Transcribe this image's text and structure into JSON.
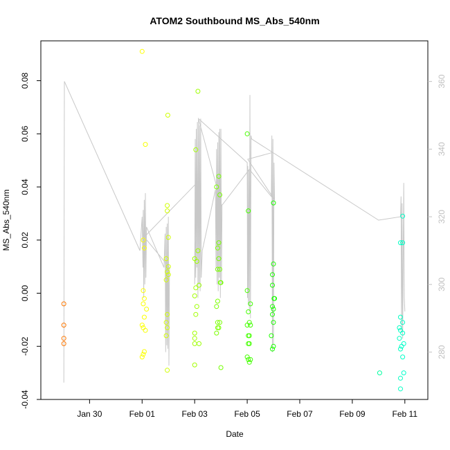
{
  "chart_data": {
    "type": "scatter",
    "title": "ATOM2 Southbound MS_Abs_540nm",
    "xlabel": "Date",
    "ylabel": "MS_Abs_540nm",
    "xlim": [
      "2017-01-28 03:30",
      "2017-02-11 21:00"
    ],
    "ylim": [
      -0.04,
      0.095
    ],
    "y2lim": [
      266,
      372
    ],
    "grid": false,
    "legend": "none",
    "x_ticks": [
      "Jan 30",
      "Feb 01",
      "Feb 03",
      "Feb 05",
      "Feb 07",
      "Feb 09",
      "Feb 11"
    ],
    "x_tick_dates": [
      "2017-01-30",
      "2017-02-01",
      "2017-02-03",
      "2017-02-05",
      "2017-02-07",
      "2017-02-09",
      "2017-02-11"
    ],
    "y_ticks": [
      -0.04,
      -0.02,
      0.0,
      0.02,
      0.04,
      0.06,
      0.08
    ],
    "y_tick_labels": [
      "-0.04",
      "-0.02",
      "0.00",
      "0.02",
      "0.04",
      "0.06",
      "0.08"
    ],
    "y2_ticks": [
      280,
      300,
      320,
      340,
      360
    ],
    "colors": {
      "points_early": "#ff8c00",
      "points_mid": "#ffff00",
      "points_late": "#00ffff",
      "overlay_line": "#c8c8c8",
      "right_axis": "#c0c0c0"
    },
    "series": [
      {
        "axis": "left",
        "style": "points",
        "points": [
          {
            "x": "2017-01-29 00:30",
            "y": -0.004
          },
          {
            "x": "2017-01-29 00:30",
            "y": -0.012
          },
          {
            "x": "2017-01-29 00:30",
            "y": -0.017
          },
          {
            "x": "2017-01-29 00:30",
            "y": -0.019
          },
          {
            "x": "2017-02-01 00:00",
            "y": 0.091
          },
          {
            "x": "2017-02-01 03:00",
            "y": 0.056
          },
          {
            "x": "2017-02-01 01:00",
            "y": 0.02
          },
          {
            "x": "2017-02-01 02:00",
            "y": 0.017
          },
          {
            "x": "2017-02-01 01:00",
            "y": 0.001
          },
          {
            "x": "2017-02-01 02:00",
            "y": -0.002
          },
          {
            "x": "2017-02-01 01:00",
            "y": -0.004
          },
          {
            "x": "2017-02-01 04:00",
            "y": -0.006
          },
          {
            "x": "2017-02-01 02:00",
            "y": -0.009
          },
          {
            "x": "2017-02-01 00:00",
            "y": -0.012
          },
          {
            "x": "2017-02-01 01:00",
            "y": -0.013
          },
          {
            "x": "2017-02-01 03:00",
            "y": -0.014
          },
          {
            "x": "2017-02-01 02:00",
            "y": -0.022
          },
          {
            "x": "2017-02-01 01:00",
            "y": -0.023
          },
          {
            "x": "2017-02-01 00:00",
            "y": -0.024
          },
          {
            "x": "2017-02-01 23:30",
            "y": 0.067
          },
          {
            "x": "2017-02-01 23:00",
            "y": 0.033
          },
          {
            "x": "2017-02-01 23:00",
            "y": 0.031
          },
          {
            "x": "2017-02-02 00:00",
            "y": 0.021
          },
          {
            "x": "2017-02-01 22:00",
            "y": 0.013
          },
          {
            "x": "2017-02-02 00:00",
            "y": 0.01
          },
          {
            "x": "2017-02-01 23:00",
            "y": 0.008
          },
          {
            "x": "2017-02-02 00:00",
            "y": 0.007
          },
          {
            "x": "2017-02-01 22:00",
            "y": 0.005
          },
          {
            "x": "2017-02-01 23:00",
            "y": -0.008
          },
          {
            "x": "2017-02-01 22:00",
            "y": -0.011
          },
          {
            "x": "2017-02-01 23:00",
            "y": -0.013
          },
          {
            "x": "2017-02-01 22:00",
            "y": -0.016
          },
          {
            "x": "2017-02-01 23:00",
            "y": -0.029
          },
          {
            "x": "2017-02-03 03:00",
            "y": 0.076
          },
          {
            "x": "2017-02-03 01:00",
            "y": 0.054
          },
          {
            "x": "2017-02-03 03:00",
            "y": 0.016
          },
          {
            "x": "2017-02-03 00:00",
            "y": 0.013
          },
          {
            "x": "2017-02-03 02:00",
            "y": 0.012
          },
          {
            "x": "2017-02-03 04:00",
            "y": 0.003
          },
          {
            "x": "2017-02-03 01:00",
            "y": 0.002
          },
          {
            "x": "2017-02-03 00:00",
            "y": -0.001
          },
          {
            "x": "2017-02-03 02:00",
            "y": -0.005
          },
          {
            "x": "2017-02-03 01:00",
            "y": -0.008
          },
          {
            "x": "2017-02-03 00:00",
            "y": -0.015
          },
          {
            "x": "2017-02-03 00:00",
            "y": -0.017
          },
          {
            "x": "2017-02-03 00:00",
            "y": -0.019
          },
          {
            "x": "2017-02-03 04:00",
            "y": -0.019
          },
          {
            "x": "2017-02-03 00:00",
            "y": -0.027
          },
          {
            "x": "2017-02-03 22:00",
            "y": 0.044
          },
          {
            "x": "2017-02-03 20:00",
            "y": 0.04
          },
          {
            "x": "2017-02-03 23:00",
            "y": 0.037
          },
          {
            "x": "2017-02-03 22:00",
            "y": 0.019
          },
          {
            "x": "2017-02-03 21:00",
            "y": 0.017
          },
          {
            "x": "2017-02-03 22:00",
            "y": 0.013
          },
          {
            "x": "2017-02-03 21:00",
            "y": 0.009
          },
          {
            "x": "2017-02-03 23:00",
            "y": 0.009
          },
          {
            "x": "2017-02-04 00:00",
            "y": 0.004
          },
          {
            "x": "2017-02-03 23:30",
            "y": 0.004
          },
          {
            "x": "2017-02-03 21:00",
            "y": -0.003
          },
          {
            "x": "2017-02-03 20:00",
            "y": -0.005
          },
          {
            "x": "2017-02-03 21:00",
            "y": -0.011
          },
          {
            "x": "2017-02-03 23:00",
            "y": -0.011
          },
          {
            "x": "2017-02-03 22:00",
            "y": -0.013
          },
          {
            "x": "2017-02-03 21:00",
            "y": -0.013
          },
          {
            "x": "2017-02-03 20:00",
            "y": -0.015
          },
          {
            "x": "2017-02-04 00:00",
            "y": -0.028
          },
          {
            "x": "2017-02-05 00:00",
            "y": 0.06
          },
          {
            "x": "2017-02-05 01:00",
            "y": 0.031
          },
          {
            "x": "2017-02-05 00:00",
            "y": 0.001
          },
          {
            "x": "2017-02-05 03:00",
            "y": -0.004
          },
          {
            "x": "2017-02-05 01:00",
            "y": -0.007
          },
          {
            "x": "2017-02-05 02:00",
            "y": -0.011
          },
          {
            "x": "2017-02-05 00:00",
            "y": -0.012
          },
          {
            "x": "2017-02-05 03:00",
            "y": -0.012
          },
          {
            "x": "2017-02-05 01:00",
            "y": -0.016
          },
          {
            "x": "2017-02-05 02:00",
            "y": -0.016
          },
          {
            "x": "2017-02-05 01:00",
            "y": -0.019
          },
          {
            "x": "2017-02-05 02:00",
            "y": -0.019
          },
          {
            "x": "2017-02-05 00:00",
            "y": -0.024
          },
          {
            "x": "2017-02-05 01:00",
            "y": -0.025
          },
          {
            "x": "2017-02-05 03:00",
            "y": -0.025
          },
          {
            "x": "2017-02-05 02:00",
            "y": -0.026
          },
          {
            "x": "2017-02-06 00:00",
            "y": 0.034
          },
          {
            "x": "2017-02-06 00:00",
            "y": 0.011
          },
          {
            "x": "2017-02-05 23:00",
            "y": 0.007
          },
          {
            "x": "2017-02-05 23:00",
            "y": 0.003
          },
          {
            "x": "2017-02-06 01:00",
            "y": -0.002
          },
          {
            "x": "2017-02-06 00:30",
            "y": -0.002
          },
          {
            "x": "2017-02-05 23:00",
            "y": -0.005
          },
          {
            "x": "2017-02-06 00:00",
            "y": -0.006
          },
          {
            "x": "2017-02-05 23:00",
            "y": -0.008
          },
          {
            "x": "2017-02-06 00:00",
            "y": -0.011
          },
          {
            "x": "2017-02-05 22:00",
            "y": -0.016
          },
          {
            "x": "2017-02-06 00:00",
            "y": -0.02
          },
          {
            "x": "2017-02-05 23:00",
            "y": -0.021
          },
          {
            "x": "2017-02-10 01:00",
            "y": -0.03
          },
          {
            "x": "2017-02-10 20:00",
            "y": 0.019
          },
          {
            "x": "2017-02-10 22:00",
            "y": 0.029
          },
          {
            "x": "2017-02-10 22:00",
            "y": 0.019
          },
          {
            "x": "2017-02-10 20:00",
            "y": -0.009
          },
          {
            "x": "2017-02-10 22:00",
            "y": -0.011
          },
          {
            "x": "2017-02-10 19:00",
            "y": -0.013
          },
          {
            "x": "2017-02-10 20:00",
            "y": -0.014
          },
          {
            "x": "2017-02-10 22:00",
            "y": -0.015
          },
          {
            "x": "2017-02-10 19:00",
            "y": -0.017
          },
          {
            "x": "2017-02-10 23:00",
            "y": -0.019
          },
          {
            "x": "2017-02-10 21:00",
            "y": -0.02
          },
          {
            "x": "2017-02-10 20:00",
            "y": -0.021
          },
          {
            "x": "2017-02-10 22:00",
            "y": -0.024
          },
          {
            "x": "2017-02-10 23:00",
            "y": -0.03
          },
          {
            "x": "2017-02-10 20:00",
            "y": -0.032
          },
          {
            "x": "2017-02-10 20:00",
            "y": -0.036
          }
        ]
      },
      {
        "axis": "right",
        "style": "line",
        "points": [
          {
            "x": "2017-01-29 00:30",
            "y": 271
          },
          {
            "x": "2017-01-29 01:00",
            "y": 360
          },
          {
            "x": "2017-01-31 22:00",
            "y": 310
          },
          {
            "x": "2017-02-01 00:00",
            "y": 320
          },
          {
            "x": "2017-02-01 00:45",
            "y": 305
          },
          {
            "x": "2017-02-01 01:00",
            "y": 322
          },
          {
            "x": "2017-02-01 01:30",
            "y": 296
          },
          {
            "x": "2017-02-01 02:00",
            "y": 325
          },
          {
            "x": "2017-02-01 02:30",
            "y": 300
          },
          {
            "x": "2017-02-01 03:00",
            "y": 327
          },
          {
            "x": "2017-02-01 03:30",
            "y": 302
          },
          {
            "x": "2017-02-01 04:00",
            "y": 317
          },
          {
            "x": "2017-02-01 20:00",
            "y": 305
          },
          {
            "x": "2017-02-01 21:00",
            "y": 315
          },
          {
            "x": "2017-02-01 21:30",
            "y": 280
          },
          {
            "x": "2017-02-01 22:00",
            "y": 317
          },
          {
            "x": "2017-02-01 22:30",
            "y": 282
          },
          {
            "x": "2017-02-01 23:00",
            "y": 318
          },
          {
            "x": "2017-02-01 23:30",
            "y": 281
          },
          {
            "x": "2017-02-02 00:00",
            "y": 320
          },
          {
            "x": "2017-02-02 00:30",
            "y": 276
          },
          {
            "x": "2017-02-02 01:00",
            "y": 305
          },
          {
            "x": "2017-02-01 02:00",
            "y": 314
          },
          {
            "x": "2017-02-03 02:00",
            "y": 330
          },
          {
            "x": "2017-02-03 00:00",
            "y": 300
          },
          {
            "x": "2017-02-03 00:30",
            "y": 343
          },
          {
            "x": "2017-02-03 01:00",
            "y": 302
          },
          {
            "x": "2017-02-03 01:30",
            "y": 346
          },
          {
            "x": "2017-02-03 02:00",
            "y": 305
          },
          {
            "x": "2017-02-03 02:30",
            "y": 348
          },
          {
            "x": "2017-02-03 03:00",
            "y": 296
          },
          {
            "x": "2017-02-03 03:30",
            "y": 349
          },
          {
            "x": "2017-02-03 04:00",
            "y": 300
          },
          {
            "x": "2017-02-03 04:30",
            "y": 347
          },
          {
            "x": "2017-02-03 05:00",
            "y": 298
          },
          {
            "x": "2017-02-03 05:30",
            "y": 349
          },
          {
            "x": "2017-02-03 06:00",
            "y": 302
          },
          {
            "x": "2017-02-03 07:00",
            "y": 310
          },
          {
            "x": "2017-02-03 19:00",
            "y": 328
          },
          {
            "x": "2017-02-03 19:30",
            "y": 305
          },
          {
            "x": "2017-02-03 20:00",
            "y": 340
          },
          {
            "x": "2017-02-03 20:30",
            "y": 300
          },
          {
            "x": "2017-02-03 21:00",
            "y": 342
          },
          {
            "x": "2017-02-03 21:30",
            "y": 298
          },
          {
            "x": "2017-02-03 22:00",
            "y": 345
          },
          {
            "x": "2017-02-03 22:30",
            "y": 302
          },
          {
            "x": "2017-02-03 23:00",
            "y": 346
          },
          {
            "x": "2017-02-03 23:30",
            "y": 296
          },
          {
            "x": "2017-02-04 00:00",
            "y": 346
          },
          {
            "x": "2017-02-04 00:30",
            "y": 300
          },
          {
            "x": "2017-02-04 01:00",
            "y": 323
          },
          {
            "x": "2017-02-03 03:30",
            "y": 349
          },
          {
            "x": "2017-02-05 00:00",
            "y": 336
          },
          {
            "x": "2017-02-05 00:15",
            "y": 296
          },
          {
            "x": "2017-02-05 00:30",
            "y": 335
          },
          {
            "x": "2017-02-05 01:00",
            "y": 294
          },
          {
            "x": "2017-02-05 01:30",
            "y": 334
          },
          {
            "x": "2017-02-05 02:00",
            "y": 292
          },
          {
            "x": "2017-02-05 02:30",
            "y": 356
          },
          {
            "x": "2017-02-05 03:00",
            "y": 290
          },
          {
            "x": "2017-02-05 03:30",
            "y": 344
          },
          {
            "x": "2017-02-05 04:00",
            "y": 343
          },
          {
            "x": "2017-02-10 00:00",
            "y": 319
          },
          {
            "x": "2017-02-10 20:00",
            "y": 320
          },
          {
            "x": "2017-02-10 20:30",
            "y": 326
          },
          {
            "x": "2017-02-10 21:00",
            "y": 286
          },
          {
            "x": "2017-02-10 21:30",
            "y": 324
          },
          {
            "x": "2017-02-10 22:00",
            "y": 284
          },
          {
            "x": "2017-02-10 23:00",
            "y": 330
          },
          {
            "x": "2017-02-10 23:30",
            "y": 296
          },
          {
            "x": "2017-02-11 00:00",
            "y": 292
          }
        ]
      },
      {
        "axis": "right",
        "style": "line",
        "points": [
          {
            "x": "2017-02-04 00:00",
            "y": 323
          },
          {
            "x": "2017-02-05 02:00",
            "y": 334
          },
          {
            "x": "2017-02-05 22:00",
            "y": 326
          },
          {
            "x": "2017-02-05 22:30",
            "y": 344
          },
          {
            "x": "2017-02-05 23:00",
            "y": 280
          },
          {
            "x": "2017-02-05 23:30",
            "y": 343
          },
          {
            "x": "2017-02-06 00:00",
            "y": 282
          },
          {
            "x": "2017-02-06 00:30",
            "y": 336
          },
          {
            "x": "2017-02-06 01:00",
            "y": 325
          },
          {
            "x": "2017-02-05 00:30",
            "y": 337
          },
          {
            "x": "2017-02-05 23:00",
            "y": 339
          }
        ]
      }
    ]
  }
}
